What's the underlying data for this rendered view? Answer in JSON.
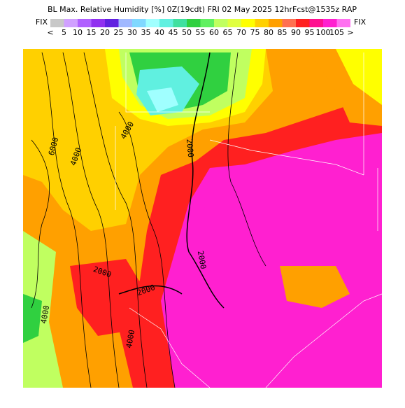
{
  "header": {
    "title": "BL Max. Relative Humidity [%] 0Z(19cdt) FRI 02 May 2025 12hrFcst@1535z RAP"
  },
  "legend": {
    "left_label": "FIX",
    "right_label": "FIX",
    "labels": [
      "<",
      "5",
      "10",
      "15",
      "20",
      "25",
      "30",
      "35",
      "40",
      "45",
      "50",
      "55",
      "60",
      "65",
      "70",
      "75",
      "80",
      "85",
      "90",
      "95",
      "100",
      "105",
      ">"
    ],
    "colors": [
      "#c8c8c8",
      "#d0a0ff",
      "#b060ff",
      "#9030f0",
      "#6020e0",
      "#a0b8ff",
      "#80d8ff",
      "#a0ffff",
      "#60f0e0",
      "#40e0a0",
      "#30d040",
      "#60f060",
      "#c0ff60",
      "#e0ff40",
      "#ffff00",
      "#ffd000",
      "#ffa000",
      "#ff7050",
      "#ff2020",
      "#ff1090",
      "#ff20d0",
      "#ff70f0"
    ]
  },
  "contour_labels": [
    "6000",
    "4000",
    "4000",
    "2000",
    "2000",
    "2000",
    "2000",
    "4000",
    "4000"
  ]
}
